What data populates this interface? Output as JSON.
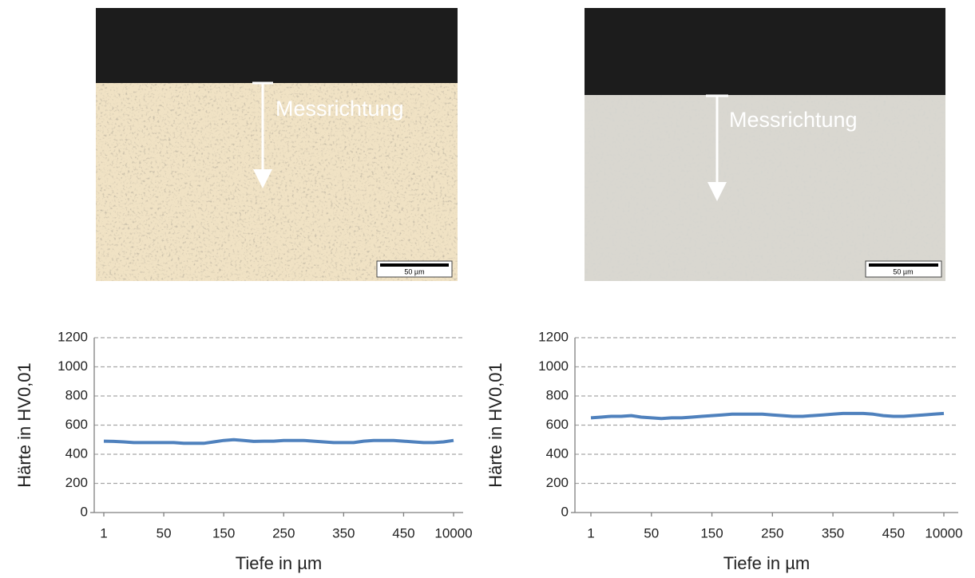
{
  "images": [
    {
      "label": "Messrichtung",
      "scale_bar": "50 µm"
    },
    {
      "label": "Messrichtung",
      "scale_bar": "50 µm"
    }
  ],
  "chart_data": [
    {
      "type": "line",
      "x_label": "Tiefe in µm",
      "y_label": "Härte in HV0,01",
      "categories": [
        "1",
        null,
        null,
        null,
        null,
        null,
        "50",
        null,
        null,
        null,
        null,
        null,
        "150",
        null,
        null,
        null,
        null,
        null,
        "250",
        null,
        null,
        null,
        null,
        null,
        "350",
        null,
        null,
        null,
        null,
        null,
        "450",
        null,
        null,
        null,
        null,
        "10000"
      ],
      "values": [
        490,
        488,
        485,
        480,
        480,
        480,
        480,
        480,
        475,
        475,
        475,
        485,
        495,
        500,
        495,
        488,
        490,
        490,
        495,
        495,
        495,
        490,
        485,
        480,
        480,
        480,
        490,
        495,
        495,
        495,
        490,
        485,
        480,
        480,
        485,
        495
      ],
      "color": "#4f81bd",
      "ylim": [
        0,
        1200
      ],
      "yticks": [
        0,
        200,
        400,
        600,
        800,
        1000,
        1200
      ],
      "grid": true
    },
    {
      "type": "line",
      "x_label": "Tiefe in µm",
      "y_label": "Härte in HV0,01",
      "categories": [
        "1",
        null,
        null,
        null,
        null,
        null,
        "50",
        null,
        null,
        null,
        null,
        null,
        "150",
        null,
        null,
        null,
        null,
        null,
        "250",
        null,
        null,
        null,
        null,
        null,
        "350",
        null,
        null,
        null,
        null,
        null,
        "450",
        null,
        null,
        null,
        null,
        "10000"
      ],
      "values": [
        650,
        655,
        660,
        660,
        665,
        655,
        650,
        645,
        650,
        650,
        655,
        660,
        665,
        670,
        675,
        675,
        675,
        675,
        670,
        665,
        660,
        660,
        665,
        670,
        675,
        680,
        680,
        680,
        675,
        665,
        660,
        660,
        665,
        670,
        675,
        680
      ],
      "color": "#4f81bd",
      "ylim": [
        0,
        1200
      ],
      "yticks": [
        0,
        200,
        400,
        600,
        800,
        1000,
        1200
      ],
      "grid": true
    }
  ]
}
